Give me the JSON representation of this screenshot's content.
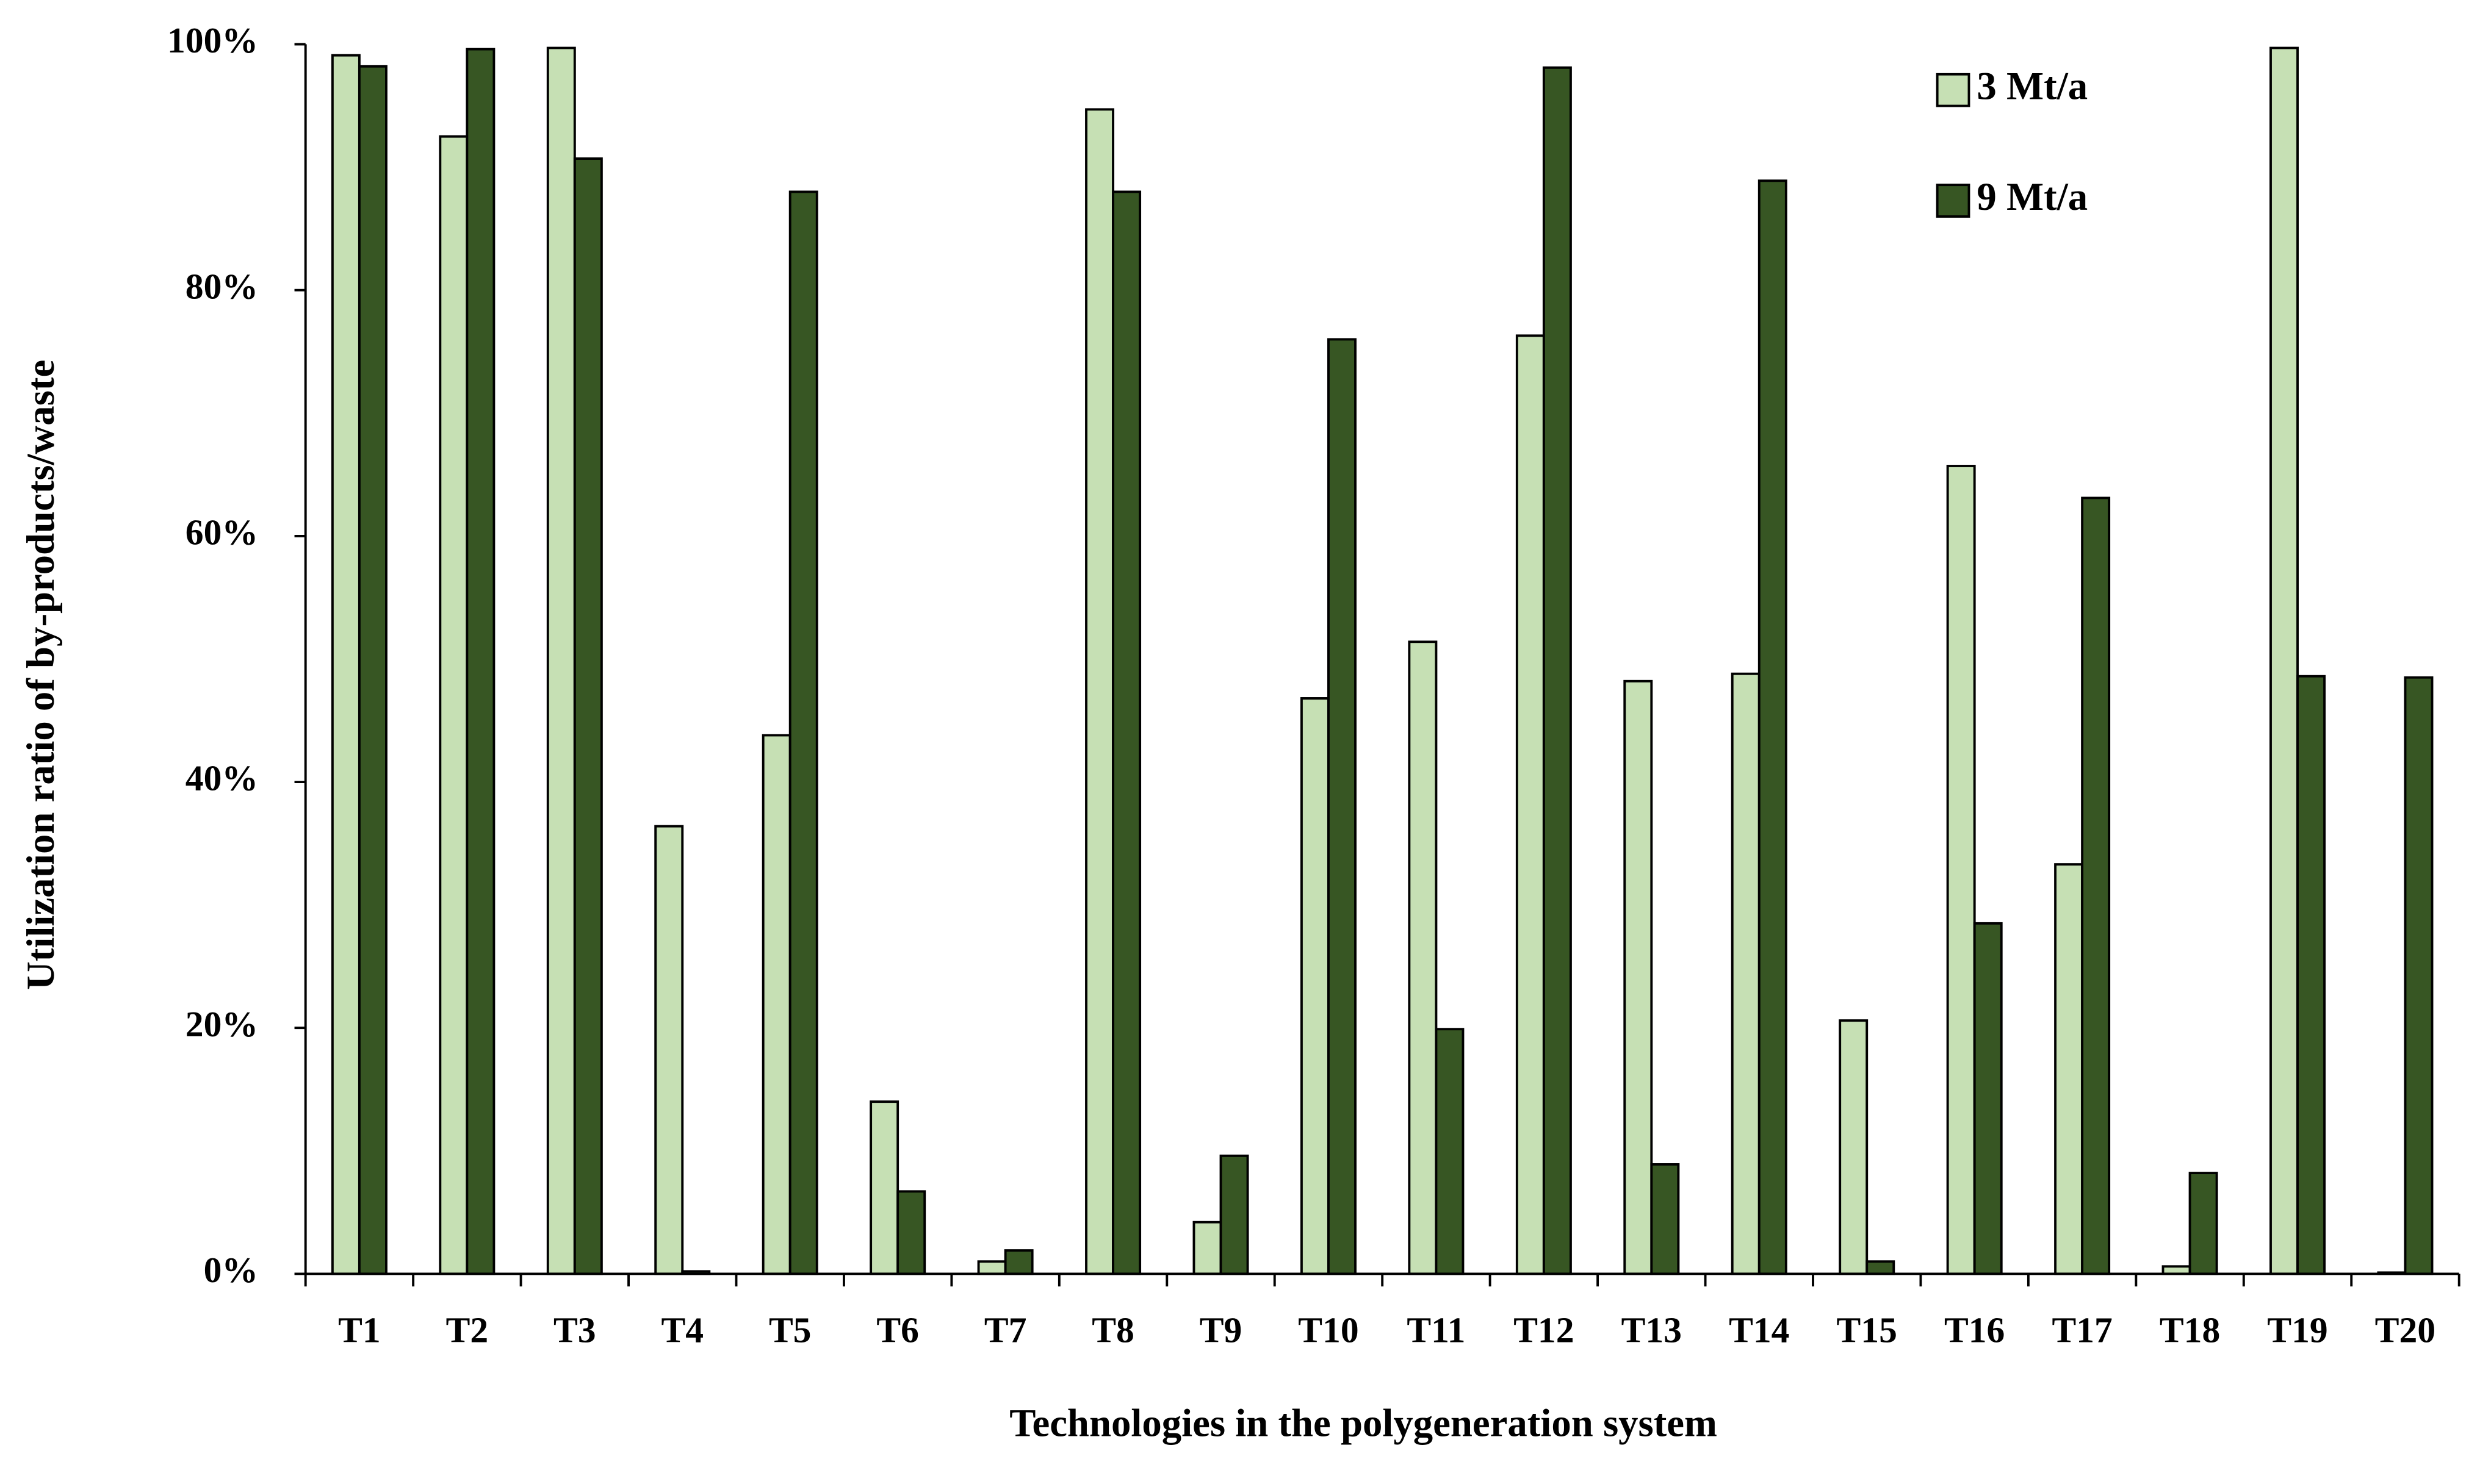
{
  "chart_data": {
    "type": "bar",
    "x_label": "Technologies in the polygeneration system",
    "y_label": "Utilization ratio of by-products/waste",
    "categories": [
      "T1",
      "T2",
      "T3",
      "T4",
      "T5",
      "T6",
      "T7",
      "T8",
      "T9",
      "T10",
      "T11",
      "T12",
      "T13",
      "T14",
      "T15",
      "T16",
      "T17",
      "T18",
      "T19",
      "T20"
    ],
    "series": [
      {
        "name": "3 Mt/a",
        "color": "#c6e0b4",
        "values": [
          99.1,
          92.5,
          99.7,
          36.4,
          43.8,
          14.0,
          1.0,
          94.7,
          4.2,
          46.8,
          51.4,
          76.3,
          48.2,
          48.8,
          20.6,
          65.7,
          33.3,
          0.6,
          99.7,
          0.1
        ]
      },
      {
        "name": "9 Mt/a",
        "color": "#375623",
        "values": [
          98.2,
          99.6,
          90.7,
          0.2,
          88.0,
          6.7,
          1.9,
          88.0,
          9.6,
          76.0,
          19.9,
          98.1,
          8.9,
          88.9,
          1.0,
          28.5,
          63.1,
          8.2,
          48.6,
          48.5
        ]
      }
    ],
    "ylim": [
      0,
      100
    ],
    "yticks": [
      {
        "value": 0,
        "label": "0%"
      },
      {
        "value": 20,
        "label": "20%"
      },
      {
        "value": 40,
        "label": "40%"
      },
      {
        "value": 60,
        "label": "60%"
      },
      {
        "value": 80,
        "label": "80%"
      },
      {
        "value": 100,
        "label": "100%"
      }
    ],
    "grid": false,
    "legend": "top-right"
  }
}
